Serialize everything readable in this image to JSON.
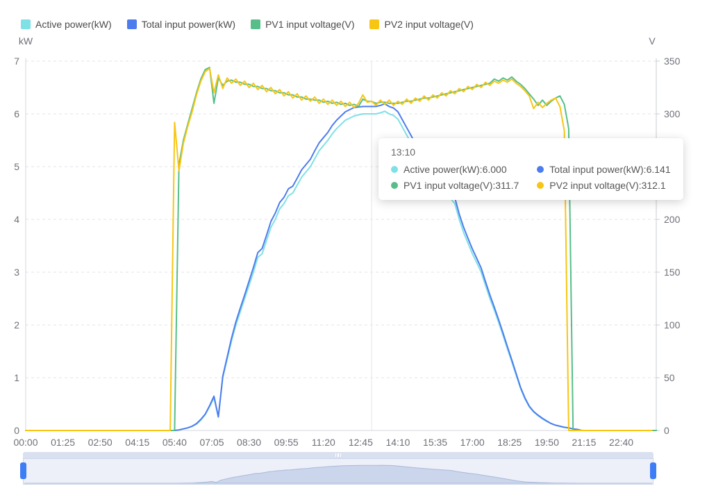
{
  "legend": {
    "items": [
      {
        "label": "Active power(kW)",
        "color": "#7fe0e6"
      },
      {
        "label": "Total input power(kW)",
        "color": "#4d7cee"
      },
      {
        "label": "PV1 input voltage(V)",
        "color": "#57be89"
      },
      {
        "label": "PV2 input voltage(V)",
        "color": "#f8c513"
      }
    ]
  },
  "tooltip": {
    "title": "13:10",
    "rows": [
      {
        "text": "Active power(kW):6.000",
        "color": "#7fe0e6"
      },
      {
        "text": "Total input power(kW):6.141",
        "color": "#4d7cee"
      },
      {
        "text": "PV1 input voltage(V):311.7",
        "color": "#57be89"
      },
      {
        "text": "PV2 input voltage(V):312.1",
        "color": "#f8c513"
      }
    ]
  },
  "chart_data": {
    "type": "line",
    "title": "",
    "xlabel": "",
    "x_unit": "time",
    "x_start_minutes": 0,
    "x_step_minutes": 10,
    "x_end_minutes": 1440,
    "x_tick_interval_minutes": 85,
    "x_tick_labels": [
      "00:00",
      "01:25",
      "02:50",
      "04:15",
      "05:40",
      "07:05",
      "08:30",
      "09:55",
      "11:20",
      "12:45",
      "14:10",
      "15:35",
      "17:00",
      "18:25",
      "19:50",
      "21:15",
      "22:40"
    ],
    "left_axis": {
      "name": "kW",
      "min": 0,
      "max": 7,
      "tick_step": 1
    },
    "right_axis": {
      "name": "V",
      "min": 0,
      "max": 350,
      "tick_step": 50
    },
    "grid": "horizontal-dashed",
    "legend_position": "top-left",
    "crosshair": {
      "time": "13:10",
      "minute": 790
    },
    "series": [
      {
        "name": "Active power(kW)",
        "axis": "left",
        "color": "#7fe0e6",
        "values": [
          0,
          0,
          0,
          0,
          0,
          0,
          0,
          0,
          0,
          0,
          0,
          0,
          0,
          0,
          0,
          0,
          0,
          0,
          0,
          0,
          0,
          0,
          0,
          0,
          0,
          0,
          0,
          0,
          0,
          0,
          0,
          0,
          0,
          0,
          0,
          0.01,
          0.03,
          0.05,
          0.08,
          0.12,
          0.2,
          0.3,
          0.45,
          0.62,
          0.25,
          1.0,
          1.35,
          1.7,
          2.0,
          2.25,
          2.5,
          2.75,
          3.0,
          3.28,
          3.35,
          3.6,
          3.85,
          4.0,
          4.2,
          4.3,
          4.45,
          4.5,
          4.65,
          4.8,
          4.9,
          5.0,
          5.15,
          5.3,
          5.4,
          5.5,
          5.62,
          5.72,
          5.8,
          5.88,
          5.92,
          5.96,
          5.98,
          6.0,
          6.0,
          6.0,
          6.0,
          6.02,
          6.05,
          6.0,
          5.97,
          5.9,
          5.75,
          5.6,
          5.45,
          5.3,
          5.15,
          5.05,
          4.92,
          4.8,
          4.7,
          4.6,
          4.5,
          4.4,
          4.3,
          4.0,
          3.75,
          3.55,
          3.35,
          3.18,
          3.0,
          2.75,
          2.5,
          2.28,
          2.05,
          1.8,
          1.55,
          1.3,
          1.05,
          0.8,
          0.6,
          0.45,
          0.35,
          0.28,
          0.22,
          0.17,
          0.13,
          0.1,
          0.08,
          0.06,
          0.05,
          0.03,
          0.02,
          0,
          0,
          0,
          0,
          0,
          0,
          0,
          0,
          0,
          0,
          0,
          0,
          0,
          0,
          0,
          0,
          0,
          0
        ]
      },
      {
        "name": "Total input power(kW)",
        "axis": "left",
        "color": "#4d7cee",
        "values": [
          0,
          0,
          0,
          0,
          0,
          0,
          0,
          0,
          0,
          0,
          0,
          0,
          0,
          0,
          0,
          0,
          0,
          0,
          0,
          0,
          0,
          0,
          0,
          0,
          0,
          0,
          0,
          0,
          0,
          0,
          0,
          0,
          0,
          0,
          0,
          0.01,
          0.03,
          0.05,
          0.08,
          0.13,
          0.21,
          0.31,
          0.47,
          0.65,
          0.26,
          1.03,
          1.39,
          1.75,
          2.06,
          2.32,
          2.57,
          2.83,
          3.09,
          3.37,
          3.45,
          3.7,
          3.96,
          4.12,
          4.32,
          4.42,
          4.58,
          4.63,
          4.78,
          4.94,
          5.04,
          5.14,
          5.3,
          5.45,
          5.55,
          5.65,
          5.78,
          5.88,
          5.96,
          6.04,
          6.08,
          6.12,
          6.13,
          6.14,
          6.14,
          6.14,
          6.14,
          6.16,
          6.19,
          6.14,
          6.11,
          6.04,
          5.89,
          5.74,
          5.59,
          5.43,
          5.28,
          5.18,
          5.04,
          4.92,
          4.82,
          4.71,
          4.61,
          4.51,
          4.41,
          4.1,
          3.85,
          3.64,
          3.44,
          3.26,
          3.08,
          2.82,
          2.57,
          2.34,
          2.1,
          1.85,
          1.59,
          1.34,
          1.08,
          0.82,
          0.62,
          0.46,
          0.36,
          0.29,
          0.23,
          0.18,
          0.13,
          0.1,
          0.08,
          0.06,
          0.05,
          0.03,
          0.02,
          0,
          0,
          0,
          0,
          0,
          0,
          0,
          0,
          0,
          0,
          0,
          0,
          0,
          0,
          0,
          0,
          0,
          0
        ]
      },
      {
        "name": "PV1 input voltage(V)",
        "axis": "right",
        "color": "#57be89",
        "values": [
          0,
          0,
          0,
          0,
          0,
          0,
          0,
          0,
          0,
          0,
          0,
          0,
          0,
          0,
          0,
          0,
          0,
          0,
          0,
          0,
          0,
          0,
          0,
          0,
          0,
          0,
          0,
          0,
          0,
          0,
          0,
          0,
          0,
          0,
          0,
          252,
          275,
          290,
          305,
          320,
          333,
          342,
          344,
          310,
          334,
          327,
          331,
          332,
          330,
          330,
          328,
          328,
          326,
          326,
          324,
          324,
          322,
          322,
          320,
          320,
          318,
          318,
          316,
          316,
          314,
          314,
          313,
          313,
          311,
          312,
          310,
          311,
          309,
          310,
          308,
          309,
          307,
          314,
          312,
          311.7,
          310,
          311,
          311,
          310,
          310,
          310,
          311,
          312,
          312,
          313,
          314,
          315,
          315,
          316,
          317,
          318,
          319,
          320,
          321,
          322,
          323,
          324,
          325,
          326,
          327,
          328,
          329,
          333,
          331,
          334,
          332,
          335,
          331,
          328,
          324,
          319,
          314,
          308,
          313,
          308,
          312,
          315,
          317,
          309,
          286,
          0,
          0,
          0,
          0,
          0,
          0,
          0,
          0,
          0,
          0,
          0,
          0,
          0,
          0,
          0,
          0,
          0,
          0,
          0,
          0
        ]
      },
      {
        "name": "PV2 input voltage(V)",
        "axis": "right",
        "color": "#f8c513",
        "values": [
          0,
          0,
          0,
          0,
          0,
          0,
          0,
          0,
          0,
          0,
          0,
          0,
          0,
          0,
          0,
          0,
          0,
          0,
          0,
          0,
          0,
          0,
          0,
          0,
          0,
          0,
          0,
          0,
          0,
          0,
          0,
          0,
          0,
          0,
          292,
          246,
          272,
          288,
          302,
          318,
          331,
          340,
          343,
          320,
          337,
          324,
          334,
          329,
          333,
          327,
          331,
          325,
          329,
          323,
          327,
          321,
          325,
          319,
          323,
          317,
          321,
          315,
          319,
          313,
          317,
          312,
          316,
          310,
          314,
          309,
          313,
          308,
          312,
          307,
          311,
          306,
          310,
          318,
          311,
          312.1,
          308,
          313,
          309,
          313,
          308,
          312,
          309,
          314,
          310,
          315,
          312,
          317,
          313,
          318,
          315,
          320,
          317,
          322,
          319,
          324,
          321,
          326,
          323,
          328,
          325,
          330,
          327,
          331,
          329,
          332,
          330,
          333,
          329,
          326,
          322,
          317,
          305,
          311,
          306,
          310,
          313,
          315,
          307,
          284,
          0,
          0,
          0,
          0,
          0,
          0,
          0,
          0,
          0,
          0,
          0,
          0,
          0,
          0,
          0,
          0,
          0,
          0,
          0,
          0
        ]
      }
    ]
  },
  "slider": {
    "range_start": "00:00",
    "range_end": "24:00",
    "handle_color": "#3d7df5",
    "area_fill": "#cbd6ec",
    "area_stroke": "#a9b9da"
  }
}
